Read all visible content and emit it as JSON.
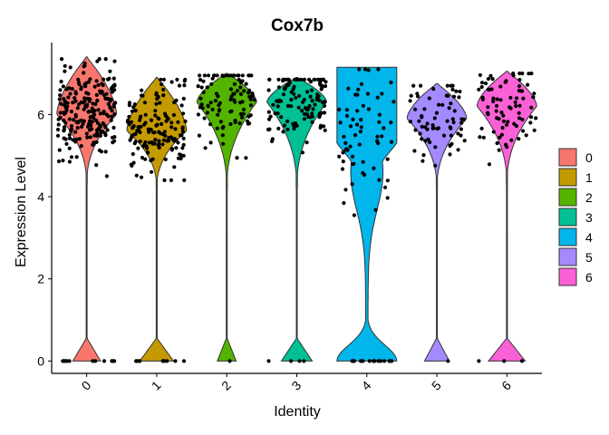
{
  "chart_data": {
    "type": "violin",
    "title": "Cox7b",
    "xlabel": "Identity",
    "ylabel": "Expression Level",
    "ylim": [
      -0.3,
      7.75
    ],
    "yticks": [
      "0",
      "2",
      "4",
      "6"
    ],
    "grid": false,
    "legend_position": "right",
    "categories": [
      "0",
      "1",
      "2",
      "3",
      "4",
      "5",
      "6"
    ],
    "colors": [
      "#F8766D",
      "#C49A00",
      "#53B400",
      "#00C094",
      "#00B6EB",
      "#A58AFF",
      "#FB61D7"
    ],
    "series": [
      {
        "name": "0",
        "max": 7.4,
        "upper_min": 4.3,
        "zero_peak": 0.45,
        "upper_peak": 6.0,
        "points_upper": 220,
        "points_zero": 12
      },
      {
        "name": "1",
        "max": 6.9,
        "upper_min": 4.2,
        "zero_peak": 0.55,
        "upper_peak": 5.6,
        "points_upper": 150,
        "points_zero": 10
      },
      {
        "name": "2",
        "max": 7.0,
        "upper_min": 4.2,
        "zero_peak": 0.3,
        "upper_peak": 6.3,
        "points_upper": 100,
        "points_zero": 1
      },
      {
        "name": "3",
        "max": 6.9,
        "upper_min": 4.2,
        "zero_peak": 0.5,
        "upper_peak": 6.3,
        "points_upper": 120,
        "points_zero": 4
      },
      {
        "name": "4",
        "max": 7.15,
        "upper_min": 0.0,
        "zero_peak": 1.0,
        "upper_peak": 6.0,
        "points_upper": 65,
        "points_zero": 14
      },
      {
        "name": "5",
        "max": 6.75,
        "upper_min": 4.2,
        "zero_peak": 0.4,
        "upper_peak": 5.9,
        "points_upper": 70,
        "points_zero": 1
      },
      {
        "name": "6",
        "max": 7.05,
        "upper_min": 4.3,
        "zero_peak": 0.6,
        "upper_peak": 6.2,
        "points_upper": 80,
        "points_zero": 3
      }
    ]
  }
}
